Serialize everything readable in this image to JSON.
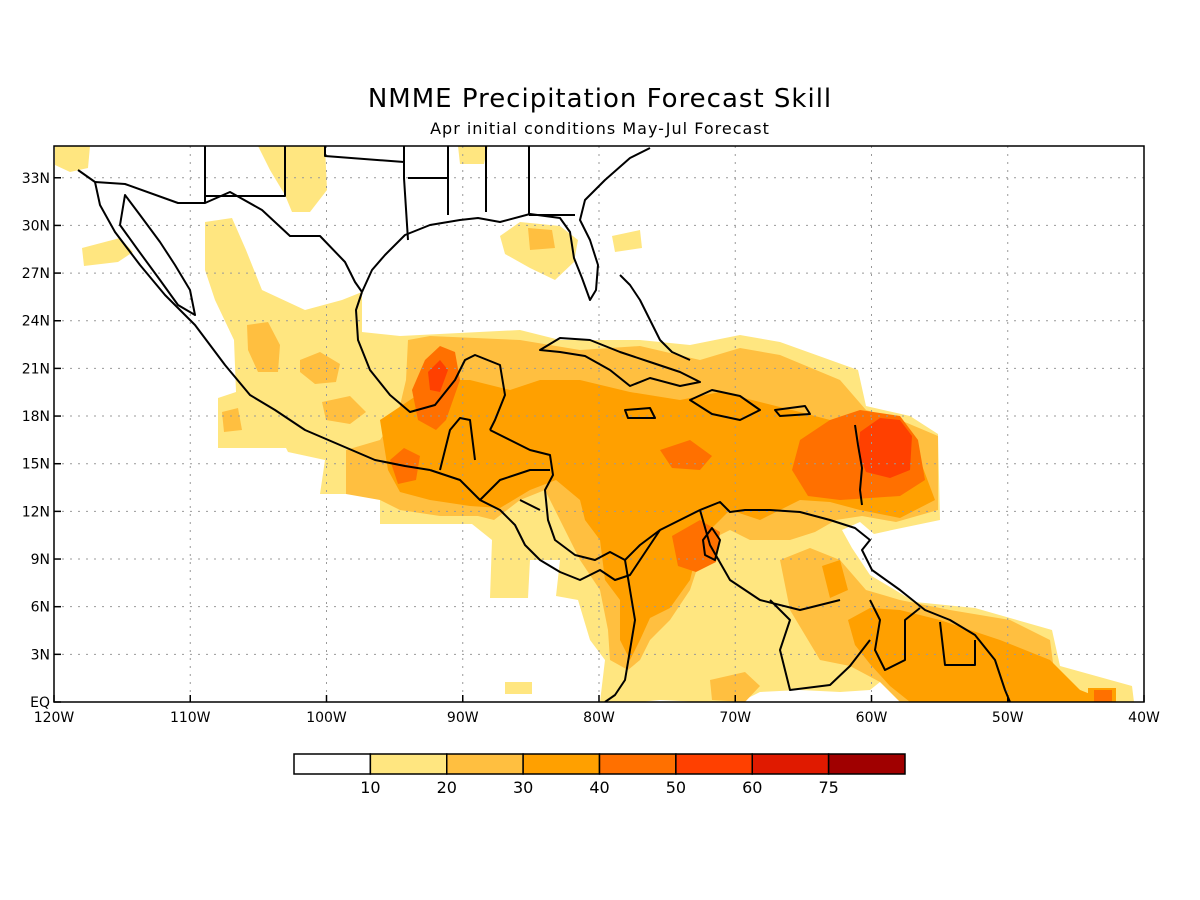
{
  "title": "NMME Precipitation Forecast Skill",
  "subtitle": "Apr initial conditions  May-Jul Forecast",
  "map": {
    "lon_range": [
      -120,
      -40
    ],
    "lat_range": [
      0,
      35
    ],
    "lon_ticks": [
      {
        "value": -120,
        "label": "120W"
      },
      {
        "value": -110,
        "label": "110W"
      },
      {
        "value": -100,
        "label": "100W"
      },
      {
        "value": -90,
        "label": "90W"
      },
      {
        "value": -80,
        "label": "80W"
      },
      {
        "value": -70,
        "label": "70W"
      },
      {
        "value": -60,
        "label": "60W"
      },
      {
        "value": -50,
        "label": "50W"
      },
      {
        "value": -40,
        "label": "40W"
      }
    ],
    "lat_ticks": [
      {
        "value": 0,
        "label": "EQ"
      },
      {
        "value": 3,
        "label": "3N"
      },
      {
        "value": 6,
        "label": "6N"
      },
      {
        "value": 9,
        "label": "9N"
      },
      {
        "value": 12,
        "label": "12N"
      },
      {
        "value": 15,
        "label": "15N"
      },
      {
        "value": 18,
        "label": "18N"
      },
      {
        "value": 21,
        "label": "21N"
      },
      {
        "value": 24,
        "label": "24N"
      },
      {
        "value": 27,
        "label": "27N"
      },
      {
        "value": 30,
        "label": "30N"
      },
      {
        "value": 33,
        "label": "33N"
      }
    ],
    "grid": true
  },
  "colorbar": {
    "colors": [
      "#ffffff",
      "#ffe680",
      "#ffbf40",
      "#ffa000",
      "#ff7000",
      "#ff4000",
      "#e01a00",
      "#a00000"
    ],
    "labels": [
      "10",
      "20",
      "30",
      "40",
      "50",
      "60",
      "75"
    ]
  },
  "colors": {
    "level1": "#ffe680",
    "level2": "#ffbf40",
    "level3": "#ffa000",
    "level4": "#ff7000",
    "level5": "#ff4000"
  }
}
